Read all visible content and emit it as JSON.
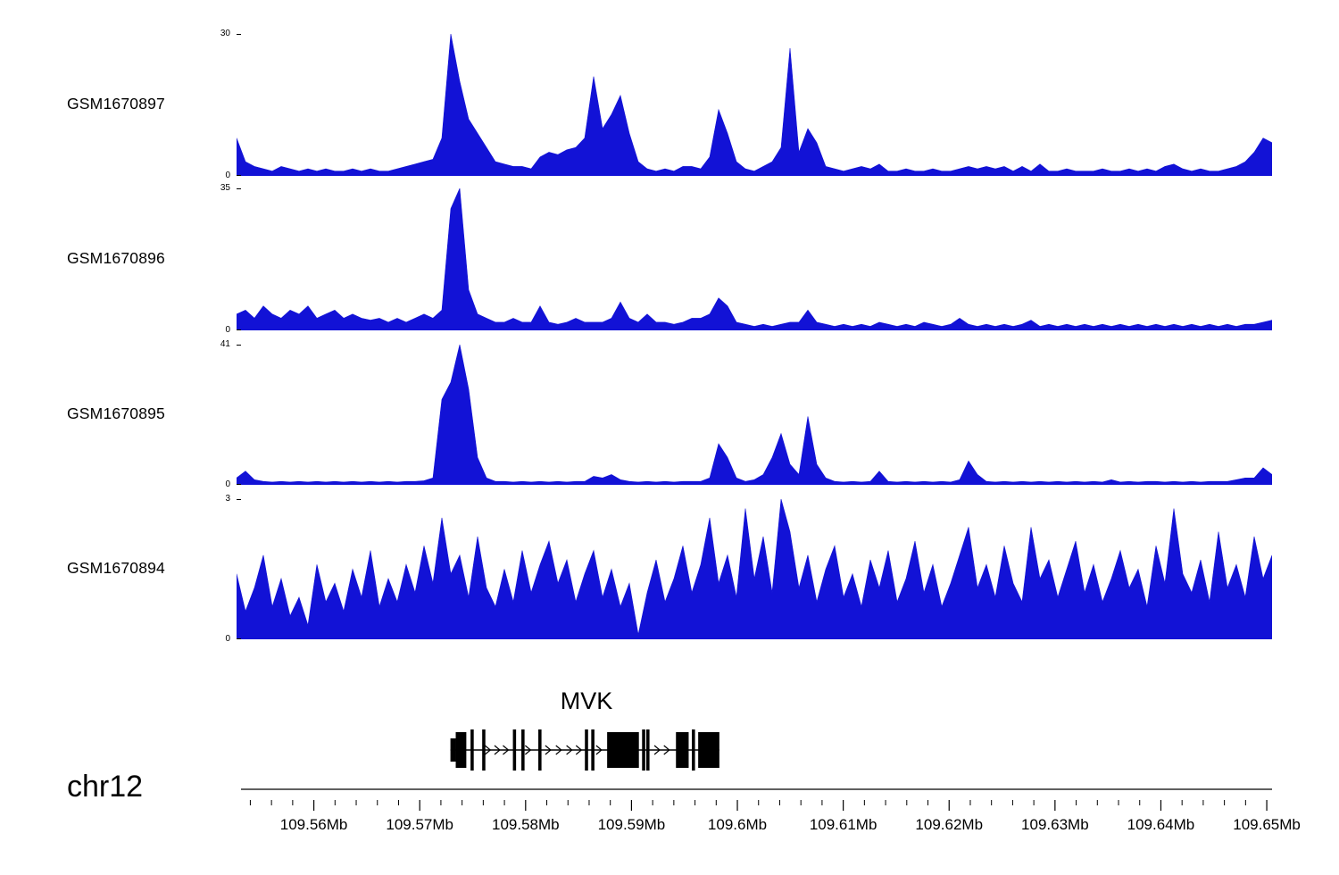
{
  "figure": {
    "bg": "#ffffff",
    "signal_color": "#1212d6",
    "gene_color": "#000000"
  },
  "chart_data": {
    "type": "area",
    "title": "Genome browser coverage tracks over MVK locus, chr12",
    "x_domain_mb": [
      109.5527,
      109.6505
    ],
    "tracks": [
      {
        "label": "GSM1670897",
        "ymin": 0,
        "ymax": 30,
        "values": [
          8,
          3,
          2,
          1.5,
          1,
          2,
          1.5,
          1,
          1.5,
          1,
          1.5,
          1,
          1,
          1.5,
          1,
          1.5,
          1,
          1,
          1.5,
          2,
          2.5,
          3,
          3.5,
          8,
          30,
          20,
          12,
          9,
          6,
          3,
          2.5,
          2,
          2,
          1.5,
          4,
          5,
          4.5,
          5.5,
          6,
          8,
          21,
          10,
          13,
          17,
          9,
          3,
          1.5,
          1,
          1.5,
          1,
          2,
          2,
          1.5,
          4,
          14,
          9,
          3,
          1.5,
          1,
          2,
          3,
          6,
          27,
          5,
          10,
          7,
          2,
          1.5,
          1,
          1.5,
          2,
          1.5,
          2.5,
          1,
          1,
          1.5,
          1,
          1,
          1.5,
          1,
          1,
          1.5,
          2,
          1.5,
          2,
          1.5,
          2,
          1,
          2,
          1,
          2.5,
          1,
          1,
          1.5,
          1,
          1,
          1,
          1.5,
          1,
          1,
          1.5,
          1,
          1.5,
          1,
          2,
          2.5,
          1.5,
          1,
          1.5,
          1,
          1,
          1.5,
          2,
          3,
          5,
          8,
          7
        ]
      },
      {
        "label": "GSM1670896",
        "ymin": 0,
        "ymax": 35,
        "values": [
          4,
          5,
          3,
          6,
          4,
          3,
          5,
          4,
          6,
          3,
          4,
          5,
          3,
          4,
          3,
          2.5,
          3,
          2,
          3,
          2,
          3,
          4,
          3,
          5,
          30,
          35,
          10,
          4,
          3,
          2,
          2,
          3,
          2,
          2,
          6,
          2,
          1.5,
          2,
          3,
          2,
          2,
          2,
          3,
          7,
          3,
          2,
          4,
          2,
          2,
          1.5,
          2,
          3,
          3,
          4,
          8,
          6,
          2,
          1.5,
          1,
          1.5,
          1,
          1.5,
          2,
          2,
          5,
          2,
          1.5,
          1,
          1.5,
          1,
          1.5,
          1,
          2,
          1.5,
          1,
          1.5,
          1,
          2,
          1.5,
          1,
          1.5,
          3,
          1.5,
          1,
          1.5,
          1,
          1.5,
          1,
          1.5,
          2.5,
          1,
          1.5,
          1,
          1.5,
          1,
          1.5,
          1,
          1.5,
          1,
          1.5,
          1,
          1.5,
          1,
          1.5,
          1,
          1.5,
          1,
          1.5,
          1,
          1.5,
          1,
          1.5,
          1,
          1.5,
          1.5,
          2,
          2.5
        ]
      },
      {
        "label": "GSM1670895",
        "ymin": 0,
        "ymax": 41,
        "values": [
          2,
          4,
          1.5,
          1,
          0.8,
          1,
          0.8,
          1,
          0.8,
          1,
          0.8,
          1,
          0.8,
          1,
          0.8,
          1,
          0.8,
          1,
          0.8,
          1,
          1,
          1.2,
          2,
          25,
          30,
          41,
          28,
          8,
          2,
          1,
          1,
          0.8,
          1,
          0.8,
          1,
          0.8,
          1,
          0.8,
          1,
          1,
          2.5,
          2,
          3,
          1.5,
          1,
          0.8,
          1,
          0.8,
          1,
          0.8,
          1,
          1,
          1,
          2,
          12,
          8,
          2,
          1,
          1.5,
          3,
          8,
          15,
          6,
          3,
          20,
          6,
          2,
          1,
          0.8,
          1,
          0.8,
          1,
          4,
          1,
          0.8,
          1,
          0.8,
          1,
          0.8,
          1,
          0.8,
          1.5,
          7,
          3,
          1,
          0.8,
          1,
          0.8,
          1,
          0.8,
          1,
          0.8,
          1,
          0.8,
          1,
          0.8,
          1,
          0.8,
          1.5,
          0.8,
          1,
          0.8,
          1,
          1,
          0.8,
          1,
          0.8,
          1,
          0.8,
          1,
          1,
          1,
          1.5,
          2,
          2,
          5,
          3
        ]
      },
      {
        "label": "GSM1670894",
        "ymin": 0,
        "ymax": 3,
        "values": [
          1.4,
          0.6,
          1.1,
          1.8,
          0.7,
          1.3,
          0.5,
          0.9,
          0.3,
          1.6,
          0.8,
          1.2,
          0.6,
          1.5,
          0.9,
          1.9,
          0.7,
          1.3,
          0.8,
          1.6,
          1.0,
          2.0,
          1.2,
          2.6,
          1.4,
          1.8,
          0.9,
          2.2,
          1.1,
          0.7,
          1.5,
          0.8,
          1.9,
          1.0,
          1.6,
          2.1,
          1.2,
          1.7,
          0.8,
          1.4,
          1.9,
          0.9,
          1.5,
          0.7,
          1.2,
          0.1,
          1.0,
          1.7,
          0.8,
          1.3,
          2.0,
          1.0,
          1.6,
          2.6,
          1.2,
          1.8,
          0.9,
          2.8,
          1.3,
          2.2,
          1.0,
          3.0,
          2.3,
          1.1,
          1.8,
          0.8,
          1.5,
          2.0,
          0.9,
          1.4,
          0.7,
          1.7,
          1.1,
          1.9,
          0.8,
          1.3,
          2.1,
          1.0,
          1.6,
          0.7,
          1.2,
          1.8,
          2.4,
          1.1,
          1.6,
          0.9,
          2.0,
          1.2,
          0.8,
          2.4,
          1.3,
          1.7,
          0.9,
          1.5,
          2.1,
          1.0,
          1.6,
          0.8,
          1.3,
          1.9,
          1.1,
          1.5,
          0.7,
          2.0,
          1.2,
          2.8,
          1.4,
          1.0,
          1.7,
          0.8,
          2.3,
          1.1,
          1.6,
          0.9,
          2.2,
          1.3,
          1.8
        ]
      }
    ],
    "gene_track": {
      "gene_name": "MVK",
      "strand": "+",
      "span_mb": [
        109.5729,
        109.5983
      ],
      "exons": [
        {
          "start": 109.5729,
          "end": 109.5734,
          "kind": "short"
        },
        {
          "start": 109.5734,
          "end": 109.5744,
          "kind": "tall"
        },
        {
          "start": 109.5748,
          "end": 109.5751,
          "kind": "thin"
        },
        {
          "start": 109.5759,
          "end": 109.5762,
          "kind": "thin"
        },
        {
          "start": 109.5788,
          "end": 109.5791,
          "kind": "thin"
        },
        {
          "start": 109.5796,
          "end": 109.5799,
          "kind": "thin"
        },
        {
          "start": 109.5812,
          "end": 109.5815,
          "kind": "thin"
        },
        {
          "start": 109.5856,
          "end": 109.5859,
          "kind": "thin"
        },
        {
          "start": 109.5862,
          "end": 109.5865,
          "kind": "thin"
        },
        {
          "start": 109.5877,
          "end": 109.5907,
          "kind": "tall"
        },
        {
          "start": 109.591,
          "end": 109.5913,
          "kind": "thin"
        },
        {
          "start": 109.5914,
          "end": 109.5917,
          "kind": "thin"
        },
        {
          "start": 109.5942,
          "end": 109.5954,
          "kind": "tall"
        },
        {
          "start": 109.5957,
          "end": 109.596,
          "kind": "thin"
        },
        {
          "start": 109.5963,
          "end": 109.5983,
          "kind": "tall"
        }
      ],
      "arrows_mb": [
        109.5765,
        109.5774,
        109.5782,
        109.5803,
        109.5822,
        109.5832,
        109.5842,
        109.5851,
        109.587,
        109.5925,
        109.5934
      ]
    },
    "axis": {
      "chrom_label": "chr12",
      "minor_tick_step_mb": 0.002,
      "ticks": [
        {
          "mb": 109.56,
          "label": "109.56Mb"
        },
        {
          "mb": 109.57,
          "label": "109.57Mb"
        },
        {
          "mb": 109.58,
          "label": "109.58Mb"
        },
        {
          "mb": 109.59,
          "label": "109.59Mb"
        },
        {
          "mb": 109.6,
          "label": "109.6Mb"
        },
        {
          "mb": 109.61,
          "label": "109.61Mb"
        },
        {
          "mb": 109.62,
          "label": "109.62Mb"
        },
        {
          "mb": 109.63,
          "label": "109.63Mb"
        },
        {
          "mb": 109.64,
          "label": "109.64Mb"
        },
        {
          "mb": 109.65,
          "label": "109.65Mb"
        }
      ]
    }
  }
}
